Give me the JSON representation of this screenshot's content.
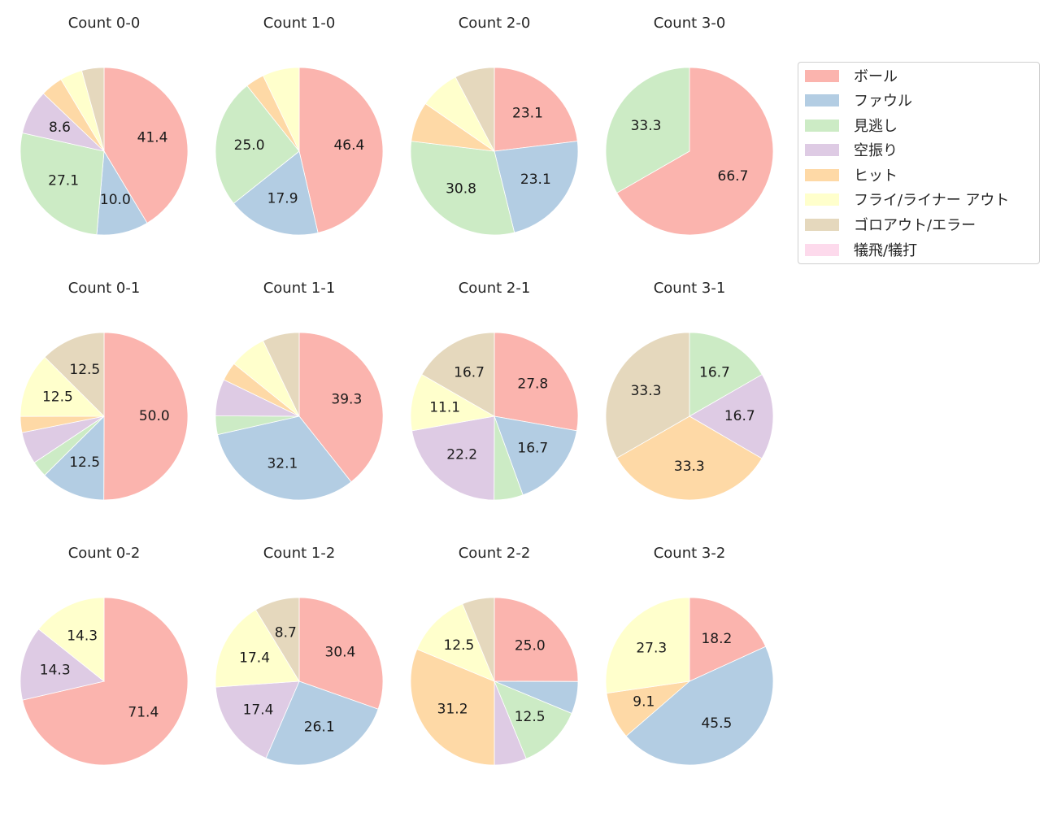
{
  "chart_data": {
    "type": "pie",
    "layout": {
      "rows": 3,
      "cols": 4,
      "legend_position": "upper right, outside grid",
      "start_angle": 90,
      "direction": "clockwise",
      "label_format": "%.1f",
      "hide_labels_below": 8
    },
    "legend": [
      {
        "label": "ボール",
        "color": "#fbb4ae"
      },
      {
        "label": "ファウル",
        "color": "#b3cde3"
      },
      {
        "label": "見逃し",
        "color": "#ccebc5"
      },
      {
        "label": "空振り",
        "color": "#decbe4"
      },
      {
        "label": "ヒット",
        "color": "#fed9a6"
      },
      {
        "label": "フライ/ライナー アウト",
        "color": "#ffffcc"
      },
      {
        "label": "ゴロアウト/エラー",
        "color": "#e5d8bd"
      },
      {
        "label": "犠飛/犠打",
        "color": "#fddaec"
      }
    ],
    "charts": [
      {
        "title": "Count 0-0",
        "values": [
          41.4,
          10.0,
          27.1,
          8.6,
          4.3,
          4.3,
          4.3,
          0
        ]
      },
      {
        "title": "Count 1-0",
        "values": [
          46.4,
          17.9,
          25.0,
          0,
          3.6,
          7.1,
          0,
          0
        ]
      },
      {
        "title": "Count 2-0",
        "values": [
          23.1,
          23.1,
          30.8,
          0,
          7.7,
          7.7,
          7.7,
          0
        ]
      },
      {
        "title": "Count 3-0",
        "values": [
          66.7,
          0,
          33.3,
          0,
          0,
          0,
          0,
          0
        ]
      },
      {
        "title": "Count 0-1",
        "values": [
          50.0,
          12.5,
          3.1,
          6.2,
          3.1,
          12.5,
          12.5,
          0
        ]
      },
      {
        "title": "Count 1-1",
        "values": [
          39.3,
          32.1,
          3.6,
          7.1,
          3.6,
          7.1,
          7.1,
          0
        ]
      },
      {
        "title": "Count 2-1",
        "values": [
          27.8,
          16.7,
          5.6,
          22.2,
          0,
          11.1,
          16.7,
          0
        ]
      },
      {
        "title": "Count 3-1",
        "values": [
          0,
          0,
          16.7,
          16.7,
          33.3,
          0,
          33.3,
          0
        ]
      },
      {
        "title": "Count 0-2",
        "values": [
          71.4,
          0,
          0,
          14.3,
          0,
          14.3,
          0,
          0
        ]
      },
      {
        "title": "Count 1-2",
        "values": [
          30.4,
          26.1,
          0,
          17.4,
          0,
          17.4,
          8.7,
          0
        ]
      },
      {
        "title": "Count 2-2",
        "values": [
          25.0,
          6.2,
          12.5,
          6.2,
          31.2,
          12.5,
          6.2,
          0
        ]
      },
      {
        "title": "Count 3-2",
        "values": [
          18.2,
          45.5,
          0,
          0,
          9.1,
          27.3,
          0,
          0
        ]
      }
    ]
  }
}
